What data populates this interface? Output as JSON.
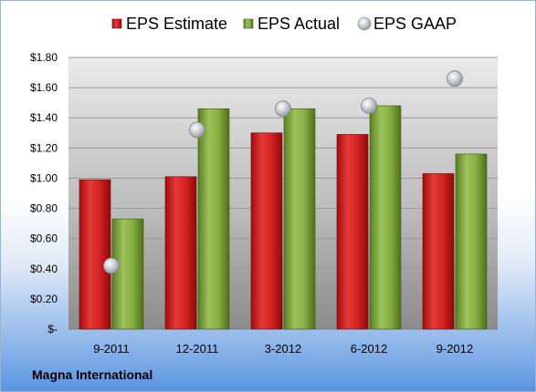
{
  "footer": {
    "company": "Magna International"
  },
  "colors": {
    "estimate": "#cc1f1f",
    "actual": "#7aa136",
    "gaap": "#b9bcc2"
  },
  "chart_data": {
    "type": "bar",
    "categories": [
      "9-2011",
      "12-2011",
      "3-2012",
      "6-2012",
      "9-2012"
    ],
    "series": [
      {
        "name": "EPS Estimate",
        "kind": "bar",
        "values": [
          0.99,
          1.01,
          1.3,
          1.29,
          1.03
        ]
      },
      {
        "name": "EPS Actual",
        "kind": "bar",
        "values": [
          0.73,
          1.46,
          1.46,
          1.48,
          1.16
        ]
      },
      {
        "name": "EPS GAAP",
        "kind": "scatter",
        "values": [
          0.42,
          1.32,
          1.46,
          1.48,
          1.66
        ]
      }
    ],
    "ylim": [
      0,
      1.8
    ],
    "yticks": [
      0,
      0.2,
      0.4,
      0.6,
      0.8,
      1.0,
      1.2,
      1.4,
      1.6,
      1.8
    ],
    "ytick_labels": [
      "$-",
      "$0.20",
      "$0.40",
      "$0.60",
      "$0.80",
      "$1.00",
      "$1.20",
      "$1.40",
      "$1.60",
      "$1.80"
    ],
    "legend_position": "top",
    "grid": true
  }
}
